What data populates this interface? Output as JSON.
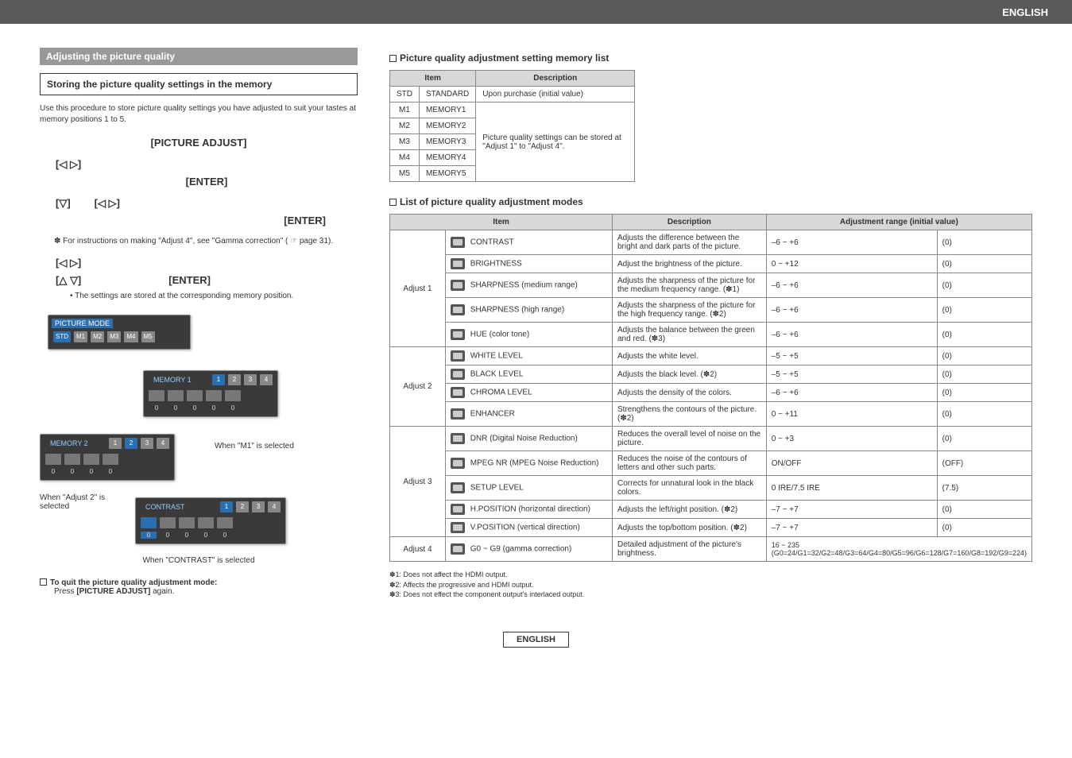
{
  "header": {
    "lang": "ENGLISH"
  },
  "left": {
    "section_title": "Adjusting the picture quality",
    "storing_title": "Storing the picture quality settings in the memory",
    "storing_desc": "Use this procedure to store picture quality settings you have adjusted to suit your tastes at memory positions 1 to 5.",
    "step1": "[PICTURE ADJUST]",
    "step2_left": "[◁ ▷]",
    "step2_enter": "[ENTER]",
    "step3_down": "[▽]",
    "step3_lr": "[◁  ▷]",
    "step3_enter": "[ENTER]",
    "gamma_note": "✽ For instructions on making \"Adjust 4\", see \"Gamma correction\" ( ☞ page 31).",
    "step4_lr": "[◁ ▷]",
    "step4_ud": "[△ ▽]",
    "step4_enter": "[ENTER]",
    "step4_bullet": "• The settings are stored at the corresponding memory position.",
    "osd": {
      "panel1_title": "PICTURE MODE",
      "modes": [
        "STD",
        "M1",
        "M2",
        "M3",
        "M4",
        "M5"
      ],
      "panel2_title": "MEMORY 1",
      "panel3_title": "MEMORY 2",
      "panel4_title": "CONTRAST",
      "nums": [
        "1",
        "2",
        "3",
        "4"
      ],
      "zero": "0",
      "caption_m1": "When \"M1\" is selected",
      "caption_adj2": "When \"Adjust 2\" is selected",
      "caption_contrast": "When \"CONTRAST\" is selected"
    },
    "quit_title": "To quit the picture quality adjustment mode:",
    "quit_press": "Press [PICTURE ADJUST] again."
  },
  "right": {
    "list_title": "Picture quality adjustment setting memory list",
    "mem_headers": {
      "item": "Item",
      "desc": "Description"
    },
    "mem_rows": [
      {
        "code": "STD",
        "name": "STANDARD",
        "desc": "Upon purchase (initial value)"
      },
      {
        "code": "M1",
        "name": "MEMORY1"
      },
      {
        "code": "M2",
        "name": "MEMORY2"
      },
      {
        "code": "M3",
        "name": "MEMORY3"
      },
      {
        "code": "M4",
        "name": "MEMORY4"
      },
      {
        "code": "M5",
        "name": "MEMORY5"
      }
    ],
    "mem_merged_desc": "Picture quality settings can be stored at \"Adjust 1\" to \"Adjust 4\".",
    "modes_title": "List of picture quality adjustment modes",
    "modes_headers": {
      "item": "Item",
      "desc": "Description",
      "range": "Adjustment range (initial value)"
    },
    "groups": [
      {
        "label": "Adjust 1",
        "rows": [
          {
            "name": "CONTRAST",
            "desc": "Adjusts the difference between the bright and dark parts of the picture.",
            "range": "–6 ~ +6",
            "init": "(0)"
          },
          {
            "name": "BRIGHTNESS",
            "desc": "Adjust the brightness of the picture.",
            "range": "0 ~ +12",
            "init": "(0)"
          },
          {
            "name": "SHARPNESS (medium range)",
            "desc": "Adjusts the sharpness of the picture for the medium frequency range. (✽1)",
            "range": "–6 ~ +6",
            "init": "(0)"
          },
          {
            "name": "SHARPNESS (high range)",
            "desc": "Adjusts the sharpness of the picture for the high frequency range. (✽2)",
            "range": "–6 ~ +6",
            "init": "(0)"
          },
          {
            "name": "HUE (color tone)",
            "desc": "Adjusts the balance between the green and red. (✽3)",
            "range": "–6 ~ +6",
            "init": "(0)"
          }
        ]
      },
      {
        "label": "Adjust 2",
        "rows": [
          {
            "name": "WHITE LEVEL",
            "desc": "Adjusts the white level.",
            "range": "–5 ~ +5",
            "init": "(0)"
          },
          {
            "name": "BLACK LEVEL",
            "desc": "Adjusts the black level. (✽2)",
            "range": "–5 ~ +5",
            "init": "(0)"
          },
          {
            "name": "CHROMA LEVEL",
            "desc": "Adjusts the density of the colors.",
            "range": "–6 ~ +6",
            "init": "(0)"
          },
          {
            "name": "ENHANCER",
            "desc": "Strengthens the contours of the picture. (✽2)",
            "range": "0 ~ +11",
            "init": "(0)"
          }
        ]
      },
      {
        "label": "Adjust 3",
        "rows": [
          {
            "name": "DNR (Digital Noise Reduction)",
            "desc": "Reduces the overall level of noise on the picture.",
            "range": "0 ~ +3",
            "init": "(0)"
          },
          {
            "name": "MPEG NR (MPEG Noise Reduction)",
            "desc": "Reduces the noise of the contours of letters and other such parts.",
            "range": "ON/OFF",
            "init": "(OFF)"
          },
          {
            "name": "SETUP LEVEL",
            "desc": "Corrects for unnatural look in the black colors.",
            "range": "0 IRE/7.5 IRE",
            "init": "(7.5)"
          },
          {
            "name": "H.POSITION (horizontal direction)",
            "desc": "Adjusts the left/right position. (✽2)",
            "range": "–7 ~ +7",
            "init": "(0)"
          },
          {
            "name": "V.POSITION (vertical direction)",
            "desc": "Adjusts the top/bottom position. (✽2)",
            "range": "–7 ~ +7",
            "init": "(0)"
          }
        ]
      },
      {
        "label": "Adjust 4",
        "rows": [
          {
            "name": "G0 ~ G9 (gamma correction)",
            "desc": "Detailed adjustment of the picture's brightness.",
            "range": "16 ~ 235\n(G0=24/G1=32/G2=48/G3=64/G4=80/G5=96/G6=128/G7=160/G8=192/G9=224)",
            "init": ""
          }
        ]
      }
    ],
    "footnotes": [
      "✽1: Does not affect the HDMI output.",
      "✽2: Affects the progressive and HDMI output.",
      "✽3: Does not effect the component output's interlaced output."
    ]
  },
  "footer": {
    "lang": "ENGLISH"
  }
}
